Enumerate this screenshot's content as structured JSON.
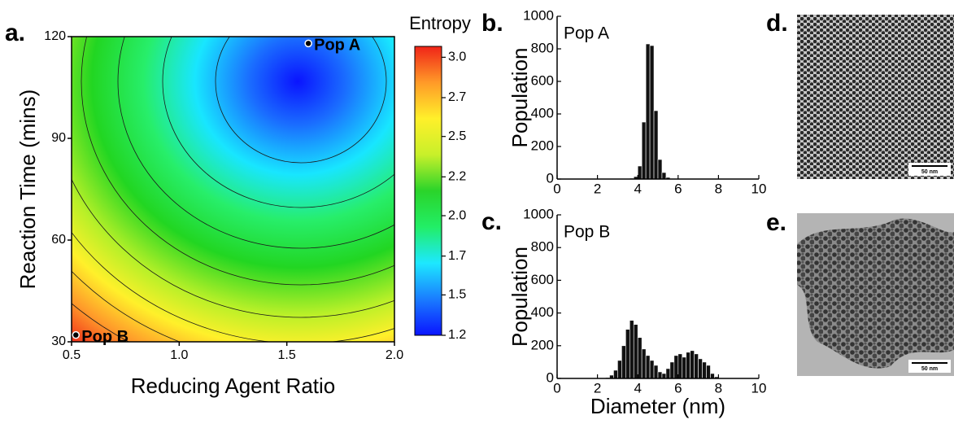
{
  "chart_data": [
    {
      "type": "contour",
      "panel": "a.",
      "xlabel": "Reducing Agent Ratio",
      "ylabel": "Reaction Time (mins)",
      "xlim": [
        0.5,
        2.0
      ],
      "xticks": [
        {
          "value": 0.5,
          "label": "0.5"
        },
        {
          "value": 1.0,
          "label": "1.0"
        },
        {
          "value": 1.5,
          "label": "1.5"
        },
        {
          "value": 2.0,
          "label": "2.0"
        }
      ],
      "ylim": [
        30,
        120
      ],
      "yticks": [
        30,
        60,
        90,
        120
      ],
      "points": [
        {
          "label": "Pop A",
          "x": 1.6,
          "y": 118
        },
        {
          "label": "Pop B",
          "x": 0.52,
          "y": 32
        }
      ],
      "colorbar": {
        "title": "Entropy",
        "lim": [
          1.2,
          3.06
        ],
        "ticks": [
          1.2,
          {
            "value": 1.46,
            "label": "1.5"
          },
          {
            "value": 1.71,
            "label": "1.7"
          },
          {
            "value": 1.97,
            "label": "2.0"
          },
          {
            "value": 2.22,
            "label": "2.2"
          },
          {
            "value": 2.48,
            "label": "2.5"
          },
          {
            "value": 2.73,
            "label": "2.7"
          },
          {
            "value": 2.99,
            "label": "3.0"
          }
        ],
        "colors": [
          "#0a14ff",
          "#1a7cff",
          "#1de8ff",
          "#22ee66",
          "#2ad42a",
          "#c8f02a",
          "#fff02a",
          "#ff9a28",
          "#f02418"
        ]
      }
    },
    {
      "type": "histogram",
      "panel": "b.",
      "annotation": "Pop A",
      "ylabel": "Population",
      "color": "#111111",
      "bins": [
        3.6,
        3.8,
        4.0,
        4.2,
        4.4,
        4.6,
        4.8,
        5.0,
        5.2,
        5.4,
        5.6
      ],
      "values": [
        5,
        15,
        80,
        350,
        830,
        820,
        420,
        120,
        40,
        10
      ],
      "xlim": [
        0,
        10
      ],
      "xticks": [
        0,
        2,
        4,
        6,
        8,
        10
      ],
      "ylim": [
        0,
        1000
      ],
      "yticks": [
        0,
        200,
        400,
        600,
        800,
        1000
      ]
    },
    {
      "type": "histogram",
      "panel": "c.",
      "annotation": "Pop B",
      "ylabel": "Population",
      "xlabel": "Diameter (nm)",
      "color": "#111111",
      "bins": [
        2.4,
        2.6,
        2.8,
        3.0,
        3.2,
        3.4,
        3.6,
        3.8,
        4.0,
        4.2,
        4.4,
        4.6,
        4.8,
        5.0,
        5.2,
        5.4,
        5.6,
        5.8,
        6.0,
        6.2,
        6.4,
        6.6,
        6.8,
        7.0,
        7.2,
        7.4,
        7.6,
        7.8,
        8.0
      ],
      "values": [
        5,
        20,
        50,
        110,
        200,
        300,
        355,
        330,
        250,
        180,
        140,
        110,
        80,
        40,
        30,
        60,
        100,
        140,
        150,
        130,
        160,
        170,
        150,
        120,
        100,
        80,
        30,
        10
      ],
      "xlim": [
        0,
        10
      ],
      "xticks": [
        0,
        2,
        4,
        6,
        8,
        10
      ],
      "ylim": [
        0,
        1000
      ],
      "yticks": [
        0,
        200,
        400,
        600,
        800,
        1000
      ]
    }
  ],
  "images": [
    {
      "panel": "d.",
      "scale_bar": "50 nm"
    },
    {
      "panel": "e.",
      "scale_bar": "50 nm"
    }
  ]
}
